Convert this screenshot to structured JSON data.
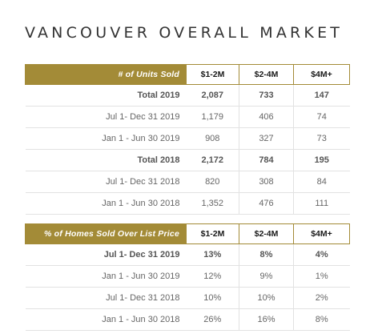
{
  "title": "VANCOUVER OVERALL MARKET",
  "units_table": {
    "header": {
      "label": "# of Units Sold",
      "cols": [
        "$1-2M",
        "$2-4M",
        "$4M+"
      ]
    },
    "rows": [
      {
        "label": "Total 2019",
        "v1": "2,087",
        "v2": "733",
        "v3": "147",
        "bold": true
      },
      {
        "label": "Jul 1- Dec 31 2019",
        "v1": "1,179",
        "v2": "406",
        "v3": "74",
        "bold": false
      },
      {
        "label": "Jan 1 - Jun 30 2019",
        "v1": "908",
        "v2": "327",
        "v3": "73",
        "bold": false
      },
      {
        "label": "Total 2018",
        "v1": "2,172",
        "v2": "784",
        "v3": "195",
        "bold": true
      },
      {
        "label": "Jul 1- Dec 31 2018",
        "v1": "820",
        "v2": "308",
        "v3": "84",
        "bold": false
      },
      {
        "label": "Jan 1 - Jun 30 2018",
        "v1": "1,352",
        "v2": "476",
        "v3": "111",
        "bold": false
      }
    ]
  },
  "pct_table": {
    "header": {
      "label": "% of Homes Sold Over List Price",
      "cols": [
        "$1-2M",
        "$2-4M",
        "$4M+"
      ]
    },
    "rows": [
      {
        "label": "Jul 1- Dec 31 2019",
        "v1": "13%",
        "v2": "8%",
        "v3": "4%",
        "bold": true
      },
      {
        "label": "Jan 1 - Jun 30 2019",
        "v1": "12%",
        "v2": "9%",
        "v3": "1%",
        "bold": false
      },
      {
        "label": "Jul 1- Dec 31 2018",
        "v1": "10%",
        "v2": "10%",
        "v3": "2%",
        "bold": false
      },
      {
        "label": "Jan 1 - Jun 30 2018",
        "v1": "26%",
        "v2": "16%",
        "v3": "8%",
        "bold": false
      }
    ]
  }
}
